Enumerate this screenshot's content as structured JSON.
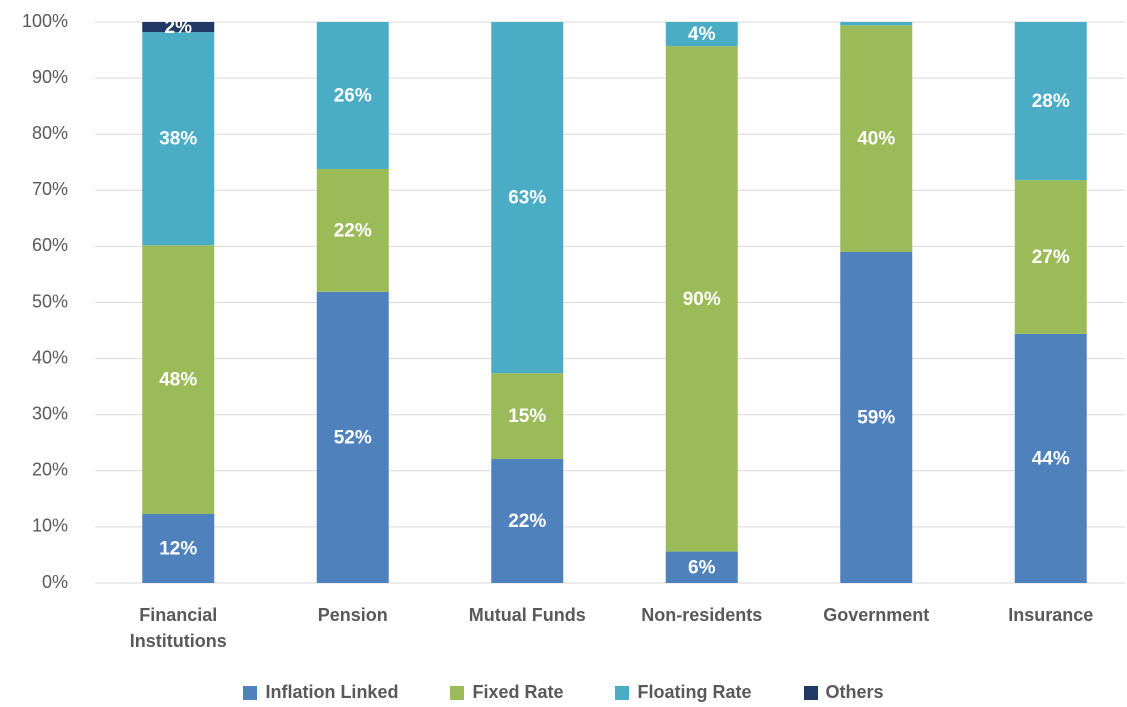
{
  "chart_data": {
    "type": "stacked_bar",
    "categories": [
      "Financial Institutions",
      "Pension",
      "Mutual Funds",
      "Non-residents",
      "Government",
      "Insurance"
    ],
    "series": [
      {
        "name": "Inflation Linked",
        "color": "#4f81bd",
        "values": [
          12.3,
          51.9,
          22.1,
          5.6,
          59.0,
          44.4
        ],
        "value_labels": [
          "12%",
          "52%",
          "22%",
          "6%",
          "59%",
          "44%"
        ]
      },
      {
        "name": "Fixed Rate",
        "color": "#9bbb59",
        "values": [
          47.9,
          21.9,
          15.3,
          90.1,
          40.4,
          27.4
        ],
        "value_labels": [
          "48%",
          "22%",
          "15%",
          "90%",
          "40%",
          "27%"
        ]
      },
      {
        "name": "Floating Rate",
        "color": "#4bacc6",
        "values": [
          38.0,
          26.2,
          62.6,
          4.3,
          0.6,
          28.2
        ],
        "value_labels": [
          "38%",
          "26%",
          "63%",
          "4%",
          null,
          "28%"
        ]
      },
      {
        "name": "Others",
        "color": "#1f3864",
        "values": [
          1.8,
          0,
          0,
          0,
          0,
          0
        ],
        "value_labels": [
          "2%",
          null,
          null,
          null,
          null,
          null
        ]
      }
    ],
    "ylim": [
      0,
      100
    ],
    "yticks": [
      {
        "value": 0,
        "label": "0%"
      },
      {
        "value": 10,
        "label": "10%"
      },
      {
        "value": 20,
        "label": "20%"
      },
      {
        "value": 30,
        "label": "30%"
      },
      {
        "value": 40,
        "label": "40%"
      },
      {
        "value": 50,
        "label": "50%"
      },
      {
        "value": 60,
        "label": "60%"
      },
      {
        "value": 70,
        "label": "70%"
      },
      {
        "value": 80,
        "label": "80%"
      },
      {
        "value": 90,
        "label": "90%"
      },
      {
        "value": 100,
        "label": "100%"
      }
    ],
    "grid": true,
    "legend": "bottom"
  }
}
